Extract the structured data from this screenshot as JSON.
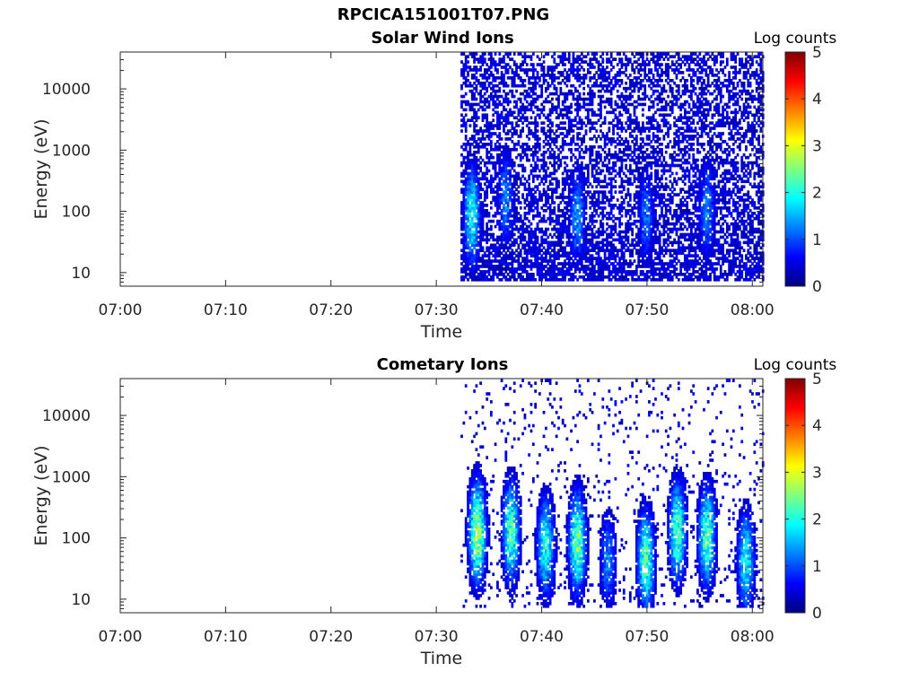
{
  "figure": {
    "title": "RPCICA151001T07.PNG"
  },
  "colors": {
    "colormap": "jet",
    "background": "#ffffff",
    "axis": "#262626"
  },
  "chart_data": [
    {
      "type": "heatmap",
      "title": "Solar Wind Ions",
      "xlabel": "Time",
      "ylabel": "Energy (eV)",
      "x_ticks": [
        "07:00",
        "07:10",
        "07:20",
        "07:30",
        "07:40",
        "07:50",
        "08:00"
      ],
      "x_range_minutes": [
        0,
        61
      ],
      "y_scale": "log",
      "y_ticks": [
        "10",
        "100",
        "1000",
        "10000"
      ],
      "y_range": [
        6,
        40000
      ],
      "colorbar": {
        "label": "Log counts",
        "ticks": [
          "0",
          "1",
          "2",
          "3",
          "4",
          "5"
        ],
        "range": [
          0,
          5
        ]
      },
      "data_start_minute": 32.3,
      "data_end_minute": 61,
      "background_level": 0.5,
      "bursts": [
        {
          "minute": 33.3,
          "peak_energy_eV": 80,
          "peak_log_counts": 2.0
        },
        {
          "minute": 36.5,
          "peak_energy_eV": 150,
          "peak_log_counts": 1.3
        },
        {
          "minute": 43.3,
          "peak_energy_eV": 80,
          "peak_log_counts": 1.4
        },
        {
          "minute": 49.8,
          "peak_energy_eV": 80,
          "peak_log_counts": 1.2
        },
        {
          "minute": 55.6,
          "peak_energy_eV": 100,
          "peak_log_counts": 1.3
        }
      ]
    },
    {
      "type": "heatmap",
      "title": "Cometary Ions",
      "xlabel": "Time",
      "ylabel": "Energy (eV)",
      "x_ticks": [
        "07:00",
        "07:10",
        "07:20",
        "07:30",
        "07:40",
        "07:50",
        "08:00"
      ],
      "x_range_minutes": [
        0,
        61
      ],
      "y_scale": "log",
      "y_ticks": [
        "10",
        "100",
        "1000",
        "10000"
      ],
      "y_range": [
        6,
        40000
      ],
      "colorbar": {
        "label": "Log counts",
        "ticks": [
          "0",
          "1",
          "2",
          "3",
          "4",
          "5"
        ],
        "range": [
          0,
          5
        ]
      },
      "data_start_minute": 32.3,
      "data_end_minute": 61,
      "background_level": 0.06,
      "bursts": [
        {
          "minute": 33.8,
          "peak_energy_eV": 120,
          "peak_log_counts": 2.9
        },
        {
          "minute": 37.0,
          "peak_energy_eV": 120,
          "peak_log_counts": 2.4
        },
        {
          "minute": 40.3,
          "peak_energy_eV": 70,
          "peak_log_counts": 2.1
        },
        {
          "minute": 43.3,
          "peak_energy_eV": 80,
          "peak_log_counts": 2.6
        },
        {
          "minute": 46.2,
          "peak_energy_eV": 40,
          "peak_log_counts": 1.3
        },
        {
          "minute": 49.8,
          "peak_energy_eV": 40,
          "peak_log_counts": 2.4
        },
        {
          "minute": 52.8,
          "peak_energy_eV": 120,
          "peak_log_counts": 2.4
        },
        {
          "minute": 55.6,
          "peak_energy_eV": 100,
          "peak_log_counts": 2.4
        },
        {
          "minute": 59.3,
          "peak_energy_eV": 40,
          "peak_log_counts": 2.0
        }
      ]
    }
  ]
}
